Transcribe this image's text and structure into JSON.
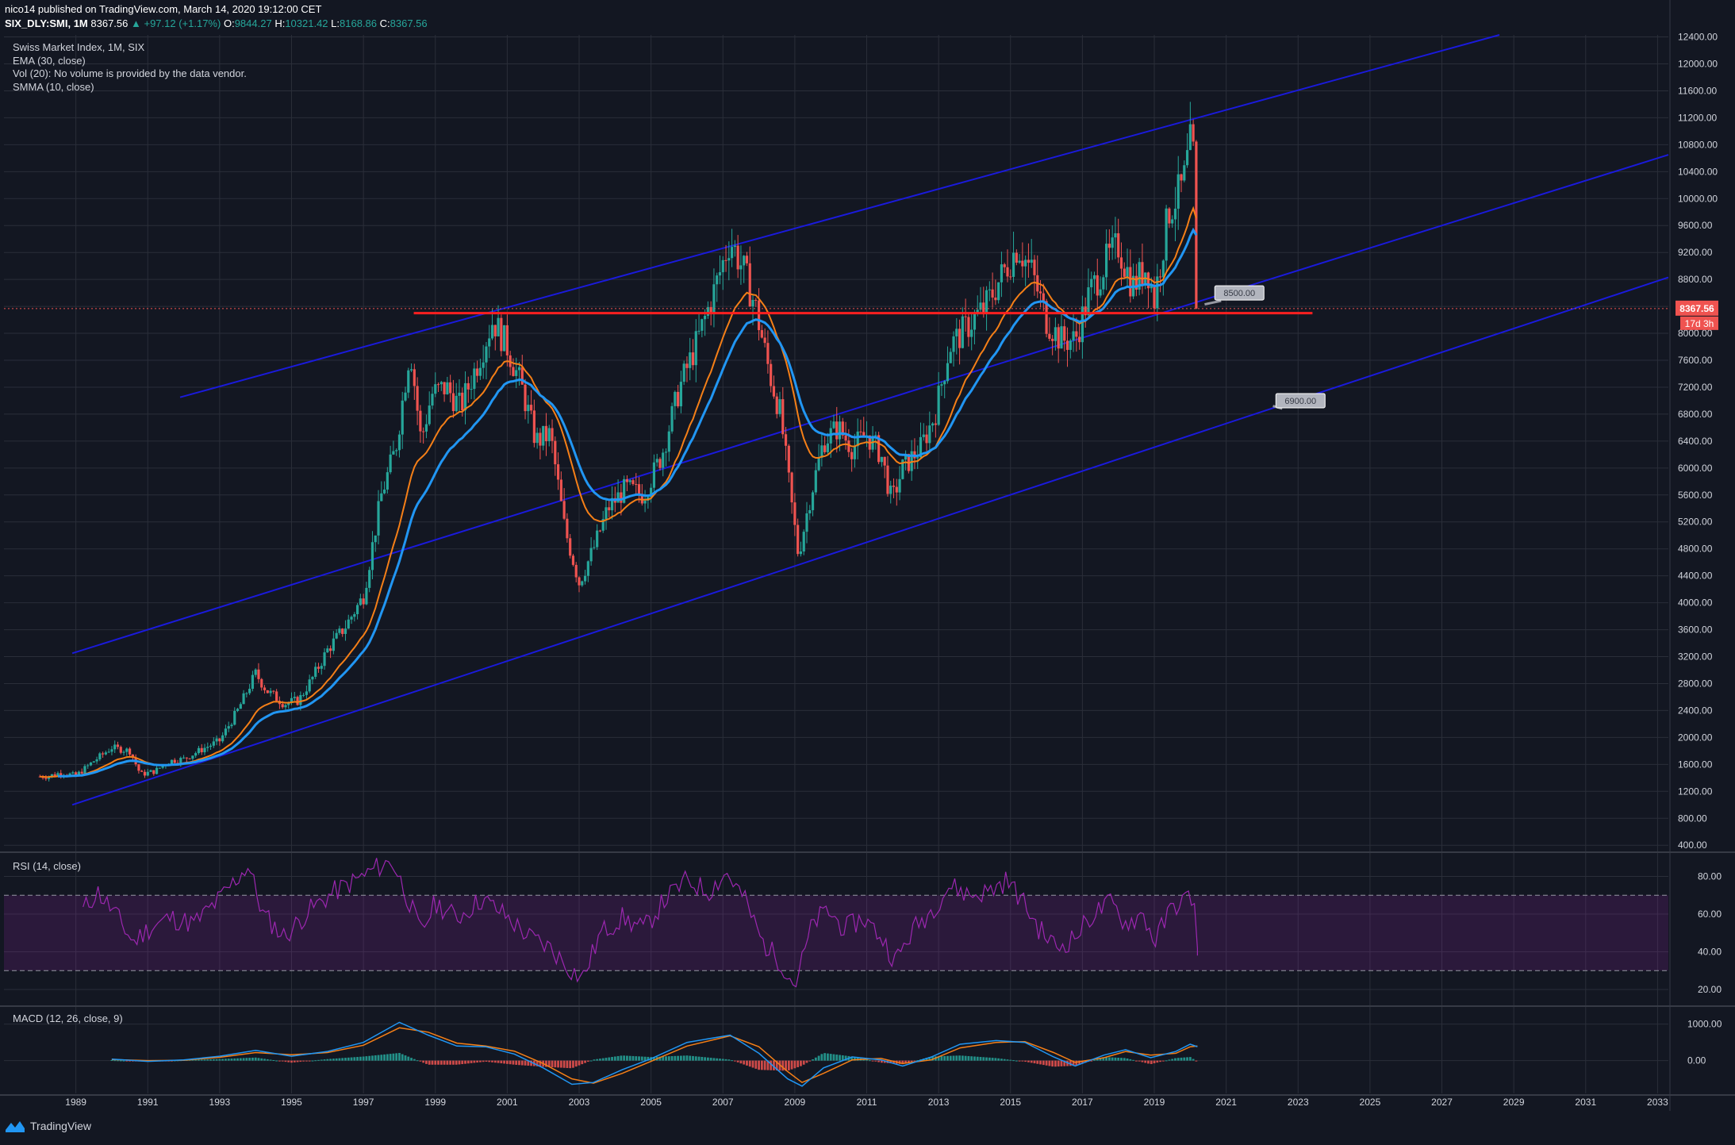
{
  "header": {
    "published": "nico14 published on TradingView.com, March 14, 2020 19:12:00 CET",
    "symbol": "SIX_DLY:SMI, 1M",
    "last": "8367.56",
    "change": "▲ +97.12 (+1.17%)",
    "o_label": "O:",
    "o": "9844.27",
    "h_label": "H:",
    "h": "10321.42",
    "l_label": "L:",
    "l": "8168.86",
    "c_label": "C:",
    "c": "8367.56"
  },
  "legend": {
    "title": "Swiss Market Index, 1M, SIX",
    "ema": "EMA (30, close)",
    "vol": "Vol (20): No volume is provided by the data vendor.",
    "smma": "SMMA (10, close)"
  },
  "rsi_title": "RSI (14, close)",
  "macd_title": "MACD (12, 26, close, 9)",
  "brand": "TradingView",
  "colors": {
    "background": "#131722",
    "grid": "#2a2e39",
    "up": "#26a69a",
    "down": "#ef5350",
    "ema": "#f57f17",
    "smma": "#2196f3",
    "channel": "#1a1adb",
    "support": "#ff2020",
    "rsi": "#9c27b0",
    "price_tag": "#ef5350"
  },
  "chart_data": [
    {
      "type": "candlestick",
      "name": "price",
      "x_ticks": [
        "1989",
        "1991",
        "1993",
        "1995",
        "1997",
        "1999",
        "2001",
        "2003",
        "2005",
        "2007",
        "2009",
        "2011",
        "2013",
        "2015",
        "2017",
        "2019",
        "2021",
        "2023",
        "2025",
        "2027",
        "2029",
        "2031",
        "2033"
      ],
      "y_ticks": [
        "12400.00",
        "12000.00",
        "11600.00",
        "11200.00",
        "10800.00",
        "10400.00",
        "10000.00",
        "9600.00",
        "9200.00",
        "8800.00",
        "8400.00",
        "8000.00",
        "7600.00",
        "7200.00",
        "6800.00",
        "6400.00",
        "6000.00",
        "5600.00",
        "5200.00",
        "4800.00",
        "4400.00",
        "4000.00",
        "3600.00",
        "3200.00",
        "2800.00",
        "2400.00",
        "2000.00",
        "1600.00",
        "1200.00",
        "800.00",
        "400.00"
      ],
      "x_range": [
        1987.0,
        2033.3
      ],
      "ylim": [
        320,
        12430
      ],
      "yearly_closes": [
        {
          "x": 1988.2,
          "y": 1420
        },
        {
          "x": 1988.6,
          "y": 1480
        },
        {
          "x": 1989.0,
          "y": 1430
        },
        {
          "x": 1989.5,
          "y": 1650
        },
        {
          "x": 1990.0,
          "y": 1850
        },
        {
          "x": 1990.5,
          "y": 1800
        },
        {
          "x": 1990.8,
          "y": 1450
        },
        {
          "x": 1991.2,
          "y": 1500
        },
        {
          "x": 1991.6,
          "y": 1650
        },
        {
          "x": 1992.0,
          "y": 1680
        },
        {
          "x": 1992.6,
          "y": 1850
        },
        {
          "x": 1993.0,
          "y": 1950
        },
        {
          "x": 1993.5,
          "y": 2400
        },
        {
          "x": 1994.0,
          "y": 2950
        },
        {
          "x": 1994.3,
          "y": 2700
        },
        {
          "x": 1994.8,
          "y": 2500
        },
        {
          "x": 1995.2,
          "y": 2550
        },
        {
          "x": 1995.6,
          "y": 2900
        },
        {
          "x": 1996.0,
          "y": 3300
        },
        {
          "x": 1996.5,
          "y": 3650
        },
        {
          "x": 1997.0,
          "y": 4100
        },
        {
          "x": 1997.5,
          "y": 5600
        },
        {
          "x": 1997.9,
          "y": 6300
        },
        {
          "x": 1998.3,
          "y": 7800
        },
        {
          "x": 1998.6,
          "y": 6400
        },
        {
          "x": 1998.9,
          "y": 7100
        },
        {
          "x": 1999.3,
          "y": 7200
        },
        {
          "x": 1999.7,
          "y": 6900
        },
        {
          "x": 2000.2,
          "y": 7600
        },
        {
          "x": 2000.6,
          "y": 8200
        },
        {
          "x": 2001.0,
          "y": 7800
        },
        {
          "x": 2001.4,
          "y": 7200
        },
        {
          "x": 2001.8,
          "y": 6400
        },
        {
          "x": 2002.2,
          "y": 6500
        },
        {
          "x": 2002.6,
          "y": 5100
        },
        {
          "x": 2003.0,
          "y": 4300
        },
        {
          "x": 2003.4,
          "y": 4800
        },
        {
          "x": 2003.8,
          "y": 5400
        },
        {
          "x": 2004.3,
          "y": 5700
        },
        {
          "x": 2004.8,
          "y": 5600
        },
        {
          "x": 2005.3,
          "y": 6200
        },
        {
          "x": 2005.8,
          "y": 7200
        },
        {
          "x": 2006.3,
          "y": 7900
        },
        {
          "x": 2006.8,
          "y": 8700
        },
        {
          "x": 2007.2,
          "y": 9400
        },
        {
          "x": 2007.6,
          "y": 8900
        },
        {
          "x": 2007.9,
          "y": 8400
        },
        {
          "x": 2008.3,
          "y": 7400
        },
        {
          "x": 2008.6,
          "y": 6800
        },
        {
          "x": 2008.9,
          "y": 5500
        },
        {
          "x": 2009.1,
          "y": 4700
        },
        {
          "x": 2009.4,
          "y": 5500
        },
        {
          "x": 2009.8,
          "y": 6400
        },
        {
          "x": 2010.2,
          "y": 6600
        },
        {
          "x": 2010.6,
          "y": 6300
        },
        {
          "x": 2011.0,
          "y": 6500
        },
        {
          "x": 2011.4,
          "y": 6200
        },
        {
          "x": 2011.7,
          "y": 5500
        },
        {
          "x": 2012.0,
          "y": 6000
        },
        {
          "x": 2012.5,
          "y": 6300
        },
        {
          "x": 2012.9,
          "y": 6800
        },
        {
          "x": 2013.3,
          "y": 7800
        },
        {
          "x": 2013.8,
          "y": 8100
        },
        {
          "x": 2014.3,
          "y": 8400
        },
        {
          "x": 2014.8,
          "y": 8900
        },
        {
          "x": 2015.2,
          "y": 9300
        },
        {
          "x": 2015.6,
          "y": 8900
        },
        {
          "x": 2016.0,
          "y": 8200
        },
        {
          "x": 2016.4,
          "y": 7900
        },
        {
          "x": 2016.8,
          "y": 7900
        },
        {
          "x": 2017.2,
          "y": 8600
        },
        {
          "x": 2017.7,
          "y": 9100
        },
        {
          "x": 2018.0,
          "y": 9300
        },
        {
          "x": 2018.4,
          "y": 8700
        },
        {
          "x": 2018.8,
          "y": 9000
        },
        {
          "x": 2019.0,
          "y": 8500
        },
        {
          "x": 2019.4,
          "y": 9800
        },
        {
          "x": 2019.8,
          "y": 10200
        },
        {
          "x": 2020.0,
          "y": 10800
        },
        {
          "x": 2020.1,
          "y": 10600
        },
        {
          "x": 2020.2,
          "y": 8367
        }
      ],
      "annotations": [
        {
          "label": "8500.00",
          "x": 2021.3,
          "y": 8600
        },
        {
          "label": "6900.00",
          "x": 2023.0,
          "y": 7000
        }
      ],
      "support_line": {
        "x_start": 1998.4,
        "x_end": 2023.4,
        "y": 8300
      },
      "last_price_tag": "8367.56",
      "countdown_tag": "17d 3h"
    },
    {
      "type": "line",
      "name": "RSI",
      "y_ticks": [
        "80.00",
        "60.00",
        "40.00",
        "20.00"
      ],
      "ylim": [
        12,
        92
      ],
      "bands": [
        30,
        70
      ],
      "points": [
        {
          "x": 1989.2,
          "y": 62
        },
        {
          "x": 1989.6,
          "y": 72
        },
        {
          "x": 1990.1,
          "y": 60
        },
        {
          "x": 1990.6,
          "y": 45
        },
        {
          "x": 1991.0,
          "y": 52
        },
        {
          "x": 1991.6,
          "y": 58
        },
        {
          "x": 1992.3,
          "y": 55
        },
        {
          "x": 1993.0,
          "y": 68
        },
        {
          "x": 1993.8,
          "y": 86
        },
        {
          "x": 1994.2,
          "y": 60
        },
        {
          "x": 1994.8,
          "y": 48
        },
        {
          "x": 1995.5,
          "y": 62
        },
        {
          "x": 1996.2,
          "y": 72
        },
        {
          "x": 1996.8,
          "y": 78
        },
        {
          "x": 1997.4,
          "y": 85
        },
        {
          "x": 1997.8,
          "y": 88
        },
        {
          "x": 1998.2,
          "y": 70
        },
        {
          "x": 1998.6,
          "y": 50
        },
        {
          "x": 1999.0,
          "y": 66
        },
        {
          "x": 1999.6,
          "y": 58
        },
        {
          "x": 2000.3,
          "y": 68
        },
        {
          "x": 2000.9,
          "y": 60
        },
        {
          "x": 2001.6,
          "y": 48
        },
        {
          "x": 2002.2,
          "y": 42
        },
        {
          "x": 2002.8,
          "y": 30
        },
        {
          "x": 2003.1,
          "y": 26
        },
        {
          "x": 2003.6,
          "y": 50
        },
        {
          "x": 2004.2,
          "y": 58
        },
        {
          "x": 2004.8,
          "y": 52
        },
        {
          "x": 2005.4,
          "y": 68
        },
        {
          "x": 2006.0,
          "y": 78
        },
        {
          "x": 2006.6,
          "y": 72
        },
        {
          "x": 2007.1,
          "y": 82
        },
        {
          "x": 2007.6,
          "y": 68
        },
        {
          "x": 2008.1,
          "y": 45
        },
        {
          "x": 2008.6,
          "y": 35
        },
        {
          "x": 2009.0,
          "y": 22
        },
        {
          "x": 2009.5,
          "y": 55
        },
        {
          "x": 2009.9,
          "y": 62
        },
        {
          "x": 2010.4,
          "y": 52
        },
        {
          "x": 2010.9,
          "y": 58
        },
        {
          "x": 2011.4,
          "y": 48
        },
        {
          "x": 2011.8,
          "y": 35
        },
        {
          "x": 2012.3,
          "y": 52
        },
        {
          "x": 2012.8,
          "y": 62
        },
        {
          "x": 2013.3,
          "y": 75
        },
        {
          "x": 2013.9,
          "y": 70
        },
        {
          "x": 2014.4,
          "y": 72
        },
        {
          "x": 2014.9,
          "y": 78
        },
        {
          "x": 2015.3,
          "y": 68
        },
        {
          "x": 2015.8,
          "y": 52
        },
        {
          "x": 2016.3,
          "y": 42
        },
        {
          "x": 2016.8,
          "y": 48
        },
        {
          "x": 2017.3,
          "y": 60
        },
        {
          "x": 2017.8,
          "y": 66
        },
        {
          "x": 2018.2,
          "y": 55
        },
        {
          "x": 2018.7,
          "y": 60
        },
        {
          "x": 2019.0,
          "y": 45
        },
        {
          "x": 2019.5,
          "y": 64
        },
        {
          "x": 2019.9,
          "y": 68
        },
        {
          "x": 2020.1,
          "y": 70
        },
        {
          "x": 2020.2,
          "y": 38
        }
      ]
    },
    {
      "type": "line",
      "name": "MACD",
      "y_ticks": [
        "1000.00",
        "0.00"
      ],
      "ylim": [
        -900,
        1450
      ],
      "series": [
        {
          "points": [
            {
              "x": 1990.0,
              "y": 40
            },
            {
              "x": 1991.0,
              "y": -20
            },
            {
              "x": 1992.0,
              "y": 20
            },
            {
              "x": 1993.0,
              "y": 120
            },
            {
              "x": 1994.0,
              "y": 280
            },
            {
              "x": 1995.0,
              "y": 120
            },
            {
              "x": 1996.0,
              "y": 250
            },
            {
              "x": 1997.0,
              "y": 500
            },
            {
              "x": 1998.0,
              "y": 1050
            },
            {
              "x": 1998.8,
              "y": 700
            },
            {
              "x": 1999.6,
              "y": 400
            },
            {
              "x": 2000.4,
              "y": 380
            },
            {
              "x": 2001.2,
              "y": 180
            },
            {
              "x": 2002.0,
              "y": -200
            },
            {
              "x": 2002.8,
              "y": -650
            },
            {
              "x": 2003.4,
              "y": -600
            },
            {
              "x": 2004.2,
              "y": -250
            },
            {
              "x": 2005.0,
              "y": 50
            },
            {
              "x": 2006.0,
              "y": 500
            },
            {
              "x": 2007.2,
              "y": 700
            },
            {
              "x": 2008.0,
              "y": 200
            },
            {
              "x": 2008.8,
              "y": -500
            },
            {
              "x": 2009.2,
              "y": -700
            },
            {
              "x": 2009.8,
              "y": -200
            },
            {
              "x": 2010.6,
              "y": 100
            },
            {
              "x": 2011.4,
              "y": 20
            },
            {
              "x": 2012.0,
              "y": -150
            },
            {
              "x": 2012.8,
              "y": 100
            },
            {
              "x": 2013.6,
              "y": 450
            },
            {
              "x": 2014.6,
              "y": 550
            },
            {
              "x": 2015.4,
              "y": 500
            },
            {
              "x": 2016.2,
              "y": 100
            },
            {
              "x": 2016.8,
              "y": -150
            },
            {
              "x": 2017.6,
              "y": 150
            },
            {
              "x": 2018.2,
              "y": 300
            },
            {
              "x": 2018.9,
              "y": 80
            },
            {
              "x": 2019.6,
              "y": 250
            },
            {
              "x": 2020.0,
              "y": 450
            },
            {
              "x": 2020.2,
              "y": 380
            }
          ]
        },
        {
          "points": [
            {
              "x": 1990.0,
              "y": 30
            },
            {
              "x": 1991.0,
              "y": 0
            },
            {
              "x": 1992.0,
              "y": 10
            },
            {
              "x": 1993.0,
              "y": 90
            },
            {
              "x": 1994.0,
              "y": 220
            },
            {
              "x": 1995.0,
              "y": 160
            },
            {
              "x": 1996.0,
              "y": 220
            },
            {
              "x": 1997.0,
              "y": 420
            },
            {
              "x": 1998.0,
              "y": 900
            },
            {
              "x": 1998.8,
              "y": 780
            },
            {
              "x": 1999.6,
              "y": 480
            },
            {
              "x": 2000.4,
              "y": 400
            },
            {
              "x": 2001.2,
              "y": 260
            },
            {
              "x": 2002.0,
              "y": -80
            },
            {
              "x": 2002.8,
              "y": -500
            },
            {
              "x": 2003.4,
              "y": -620
            },
            {
              "x": 2004.2,
              "y": -350
            },
            {
              "x": 2005.0,
              "y": -20
            },
            {
              "x": 2006.0,
              "y": 400
            },
            {
              "x": 2007.2,
              "y": 680
            },
            {
              "x": 2008.0,
              "y": 380
            },
            {
              "x": 2008.8,
              "y": -300
            },
            {
              "x": 2009.2,
              "y": -600
            },
            {
              "x": 2009.8,
              "y": -350
            },
            {
              "x": 2010.6,
              "y": 20
            },
            {
              "x": 2011.4,
              "y": 60
            },
            {
              "x": 2012.0,
              "y": -80
            },
            {
              "x": 2012.8,
              "y": 20
            },
            {
              "x": 2013.6,
              "y": 350
            },
            {
              "x": 2014.6,
              "y": 500
            },
            {
              "x": 2015.4,
              "y": 520
            },
            {
              "x": 2016.2,
              "y": 220
            },
            {
              "x": 2016.8,
              "y": -50
            },
            {
              "x": 2017.6,
              "y": 80
            },
            {
              "x": 2018.2,
              "y": 250
            },
            {
              "x": 2018.9,
              "y": 150
            },
            {
              "x": 2019.6,
              "y": 200
            },
            {
              "x": 2020.0,
              "y": 380
            },
            {
              "x": 2020.2,
              "y": 400
            }
          ]
        }
      ]
    }
  ]
}
